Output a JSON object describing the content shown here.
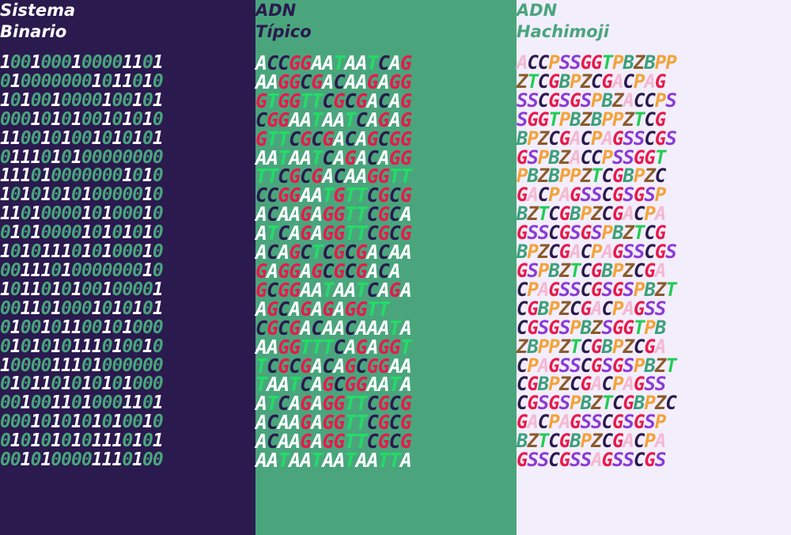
{
  "panels": [
    {
      "title": [
        "Sistema",
        "Binario"
      ],
      "background": "#2a1a4e",
      "title_color": "#ffffff",
      "letter_colors": {
        "1": "#ffffff",
        "0": "#4aa57d"
      },
      "lines": [
        "1001000100001101",
        "0100000001011010",
        "1010010000100101",
        "0001010100101010",
        "1100101001010101",
        "0111010100000000",
        "1110100000001010",
        "1010101010000010",
        "1101000010100010",
        "0101000010101010",
        "1010111010100010",
        "0011101000000010",
        "1011010100100001",
        "0011010001010101",
        "0100101100101000",
        "0101010111010010",
        "1000011101000000",
        "0101101010101000",
        "0010011010001101",
        "0001010101010010",
        "0101010101110101",
        "0010100001110100"
      ]
    },
    {
      "title": [
        "ADN",
        "Típico"
      ],
      "background": "#4aa57d",
      "title_color": "#2a1a4e",
      "letter_colors": {
        "A": "#ffffff",
        "C": "#2a1a4e",
        "G": "#e8194b",
        "T": "#22dd66"
      },
      "lines": [
        "ACCGGAATAATCAG",
        "AAGGCGACAAGAGG",
        "GTGGTTCGCGACAG",
        "CGGAATAATCAGAG",
        "GTTCGCGACAGCGG",
        "AATAATCAGACAGG",
        "TTCGCGACAAGGTT",
        "CCGGAATGTTCGCG",
        "ACAAGAGGTTCGCA",
        "ATCAGAGGTTCGCG",
        "ACAGCTCGCGACAA",
        "GAGGAGCGCGACA",
        "GCGGAATAATCAGA",
        "AGCAGAGAGGTT",
        "CGCGACAACAAATA",
        "AAGGTTTCAGAGGT",
        "TCGCGACAGCGGAA",
        "TAATCAGCGGAATA",
        "ATCAGAGGTTCGCG",
        "ACAAGAGGTTCGCG",
        "ACAAGAGGTTCGCG",
        "AATAATAATAATTA"
      ]
    },
    {
      "title": [
        "ADN",
        "Hachimoji"
      ],
      "background": "#f3eefb",
      "title_color": "#4aa57d",
      "letter_colors": {
        "A": "#f4b8d2",
        "C": "#2a1a4e",
        "G": "#e8194b",
        "T": "#22cc55",
        "P": "#f2a33a",
        "Z": "#8a5a2b",
        "B": "#3aa07a",
        "S": "#8a3ad6"
      },
      "lines": [
        "ACCPSSGGTPBZBPP",
        "ZTCGBPZCGACPAG",
        "SSCGSGSPBZACCPS",
        "SGGTPBZBPPZTCG",
        "BPZCGACPAGSSCGS",
        "GSPBZACCPSSGGT",
        "PBZBPPZTCGBPZC",
        "GACPAGSSCGSGSP",
        "BZTCGBPZCGACPA",
        "GSSCGSGSPBZTCG",
        "BPZCGACPAGSSCGS",
        "GSPBZTCGBPZCGA",
        "CPAGSSCGSGSPBZT",
        "CGBPZCGACPAGSS",
        "CGSGSPBZSGGTPB",
        "ZBPPZTCGBPZCGA",
        "CPAGSSCGSGSPBZT",
        "CGBPZCGACPAGSS",
        "CGSGSPBZTCGBPZC",
        "GACPAGSSCGSGSP",
        "BZTCGBPZCGACPA",
        "GSSCGSSAGSSCGS"
      ]
    }
  ]
}
